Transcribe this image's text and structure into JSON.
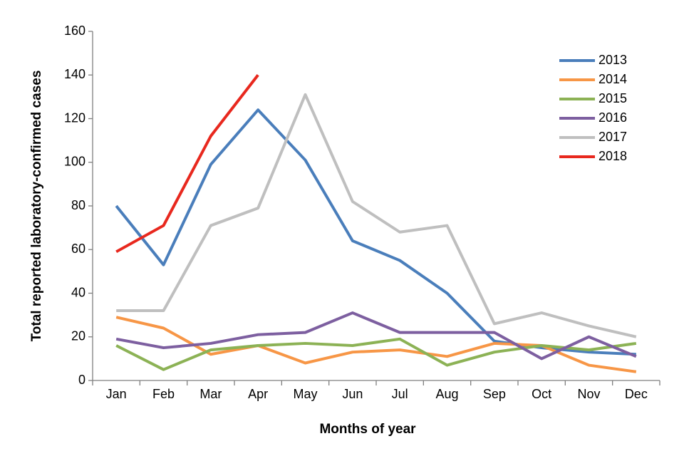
{
  "chart_data": {
    "type": "line",
    "x_label": "Months of year",
    "y_label": "Total reported laboratory-confirmed cases",
    "categories": [
      "Jan",
      "Feb",
      "Mar",
      "Apr",
      "May",
      "Jun",
      "Jul",
      "Aug",
      "Sep",
      "Oct",
      "Nov",
      "Dec"
    ],
    "series": [
      {
        "name": "2013",
        "color": "#4a7ebb",
        "values": [
          80,
          53,
          99,
          124,
          101,
          64,
          55,
          40,
          18,
          15,
          13,
          12
        ]
      },
      {
        "name": "2014",
        "color": "#f79646",
        "values": [
          29,
          24,
          12,
          16,
          8,
          13,
          14,
          11,
          17,
          16,
          7,
          4
        ]
      },
      {
        "name": "2015",
        "color": "#8cb255",
        "values": [
          16,
          5,
          14,
          16,
          17,
          16,
          19,
          7,
          13,
          16,
          14,
          17
        ]
      },
      {
        "name": "2016",
        "color": "#7d5fa0",
        "values": [
          19,
          15,
          17,
          21,
          22,
          31,
          22,
          22,
          22,
          10,
          20,
          11
        ]
      },
      {
        "name": "2017",
        "color": "#bfbfbf",
        "values": [
          32,
          32,
          71,
          79,
          131,
          82,
          68,
          71,
          26,
          31,
          25,
          20
        ]
      },
      {
        "name": "2018",
        "color": "#e8281e",
        "values": [
          59,
          71,
          112,
          140,
          null,
          null,
          null,
          null,
          null,
          null,
          null,
          null
        ]
      }
    ],
    "ylim": [
      0,
      160
    ],
    "yticks": [
      0,
      20,
      40,
      60,
      80,
      100,
      120,
      140,
      160
    ],
    "grid": false,
    "legend": "top-right"
  }
}
